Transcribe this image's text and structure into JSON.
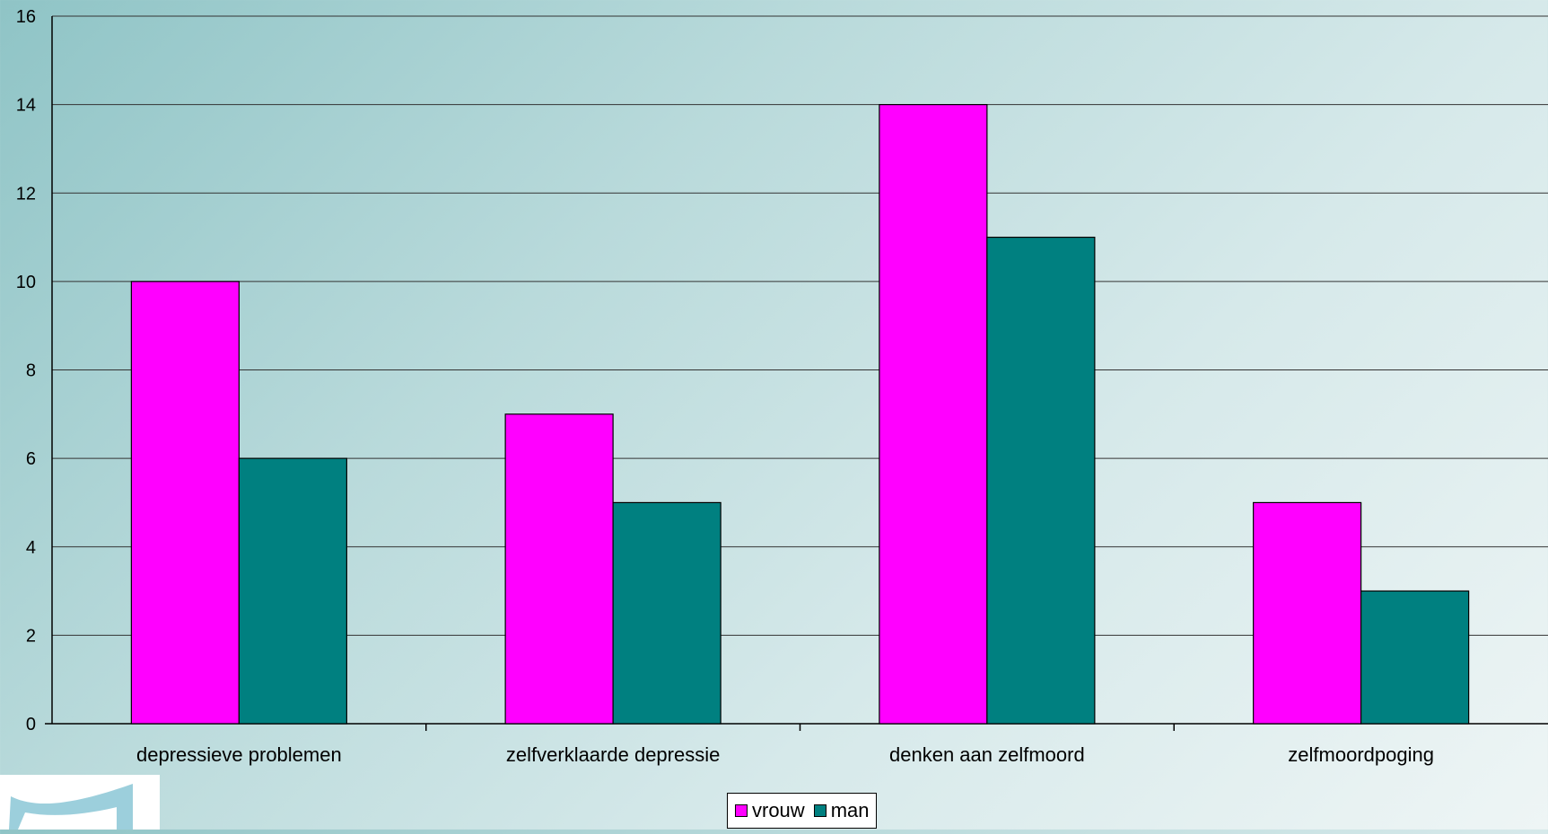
{
  "chart_data": {
    "type": "bar",
    "categories": [
      "depressieve problemen",
      "zelfverklaarde depressie",
      "denken aan zelfmoord",
      "zelfmoordpoging"
    ],
    "series": [
      {
        "name": "vrouw",
        "color": "#ff00ff",
        "values": [
          10,
          7,
          14,
          5
        ]
      },
      {
        "name": "man",
        "color": "#008080",
        "values": [
          6,
          5,
          11,
          3
        ]
      }
    ],
    "yticks": [
      0,
      2,
      4,
      6,
      8,
      10,
      12,
      14,
      16
    ],
    "ylim": [
      0,
      16
    ],
    "grid": true,
    "legend": "bottom-center"
  }
}
